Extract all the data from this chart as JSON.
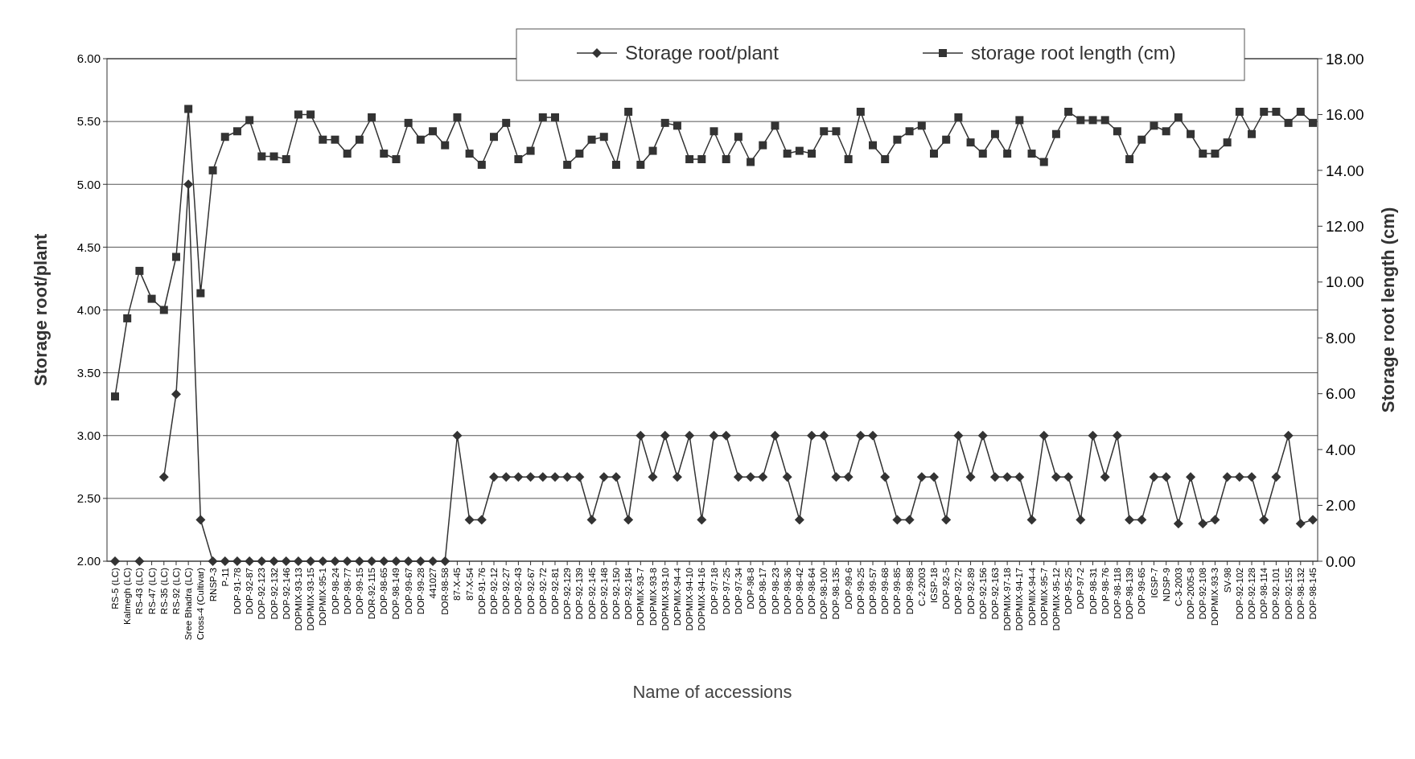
{
  "chart_data": {
    "type": "line",
    "xlabel": "Name of accessions",
    "ylabel": "Storage root/plant",
    "y2label": "Storage root length (cm)",
    "categories": [
      "RS-5 (LC)",
      "Kalmegh (LC)",
      "RS-43 (LC)",
      "RS-47 (LC)",
      "RS-35 (LC)",
      "RS-92 (LC)",
      "Sree Bhadra (LC)",
      "Cross-4 (Cultivar)",
      "RNSP-3",
      "P-11",
      "DOP-91-78",
      "DOP-92-87",
      "DOP-92-123",
      "DOP-92-132",
      "DOP-92-146",
      "DOPMIX-93-13",
      "DOPMIX-93-15",
      "DOPMIX-95-1",
      "DOP-98-24",
      "DOP-98-77",
      "DOP-99-15",
      "DOR-92-115",
      "DOP-98-65",
      "DOP-98-149",
      "DOP-99-67",
      "DOP-99-28",
      "441027",
      "DOR-98-58",
      "87-X-45",
      "87-X-54",
      "DOP-91-76",
      "DOP-92-12",
      "DOP-92-27",
      "DOP-92-43",
      "DOP-92-67",
      "DOP-92-72",
      "DOP-92-81",
      "DOP-92-129",
      "DOP-92-139",
      "DOP-92-145",
      "DOP-92-148",
      "DOP-92-150",
      "DOP-92-184",
      "DOPMIX-93-7",
      "DOPMIX-93-8",
      "DOPMIX-93-10",
      "DOPMIX-94-4",
      "DOPMIX-94-10",
      "DOPMIX-94-16",
      "DOP-97-18",
      "DOP-97-25",
      "DOP-97-34",
      "DOP-98-8",
      "DOP-98-17",
      "DOP-98-23",
      "DOP-98-36",
      "DOP-98-42",
      "DOP-98-64",
      "DOP-98-100",
      "DOP-98-135",
      "DOP-99-6",
      "DOP-99-25",
      "DOP-99-57",
      "DOP-99-68",
      "DOP-99-85",
      "DOP-99-88",
      "C-2-2003",
      "IGSP-18",
      "DOP-92-5",
      "DOP-92-72",
      "DOP-92-89",
      "DOP-92-156",
      "DOP-92-163",
      "DOPMIX-97-18",
      "DOPMIX-94-17",
      "DOPMIX-94-4",
      "DOPMIX-95-7",
      "DOPMIX-95-12",
      "DOP-95-25",
      "DOP-97-2",
      "DOP-98-31",
      "DOP-98-76",
      "DOP-98-118",
      "DOP-98-139",
      "DOP-99-65",
      "IGSP-7",
      "NDSP-9",
      "C-3-2003",
      "DOP-2005-8",
      "DOP-92-108",
      "DOPMIX-93-3",
      "SV-98",
      "DOP-92-102",
      "DOP-92-128",
      "DOP-98-114",
      "DOP-92-101",
      "DOP-92-155",
      "DOP-98-132",
      "DOP-98-145"
    ],
    "series": [
      {
        "name": "Storage root/plant",
        "color": "#333333",
        "marker": "diamond",
        "values": [
          2.0,
          null,
          2.0,
          null,
          2.67,
          3.33,
          5.0,
          2.33,
          2.0,
          2.0,
          2.0,
          2.0,
          2.0,
          2.0,
          2.0,
          2.0,
          2.0,
          2.0,
          2.0,
          2.0,
          2.0,
          2.0,
          2.0,
          2.0,
          2.0,
          2.0,
          2.0,
          2.0,
          3.0,
          2.33,
          2.33,
          2.67,
          2.67,
          2.67,
          2.67,
          2.67,
          2.67,
          2.67,
          2.67,
          2.33,
          2.67,
          2.67,
          2.33,
          3.0,
          2.67,
          3.0,
          2.67,
          3.0,
          2.33,
          3.0,
          3.0,
          2.67,
          2.67,
          2.67,
          3.0,
          2.67,
          2.33,
          3.0,
          3.0,
          2.67,
          2.67,
          3.0,
          3.0,
          2.67,
          2.33,
          2.33,
          2.67,
          2.67,
          2.33,
          3.0,
          2.67,
          3.0,
          2.67,
          2.67,
          2.67,
          2.33,
          3.0,
          2.67,
          2.67,
          2.33,
          3.0,
          2.67,
          3.0,
          2.33,
          2.33,
          2.67,
          2.67,
          2.3,
          2.67,
          2.3,
          2.33,
          2.67,
          2.67,
          2.67,
          2.33,
          2.67,
          3.0,
          2.3,
          2.33
        ]
      },
      {
        "name": "storage root length (cm)",
        "color": "#333333",
        "marker": "square",
        "axis": "y2",
        "values": [
          5.9,
          8.7,
          10.4,
          9.4,
          9.0,
          10.9,
          16.2,
          9.6,
          14.0,
          15.2,
          15.4,
          15.8,
          14.5,
          14.5,
          14.4,
          16.0,
          16.0,
          15.1,
          15.1,
          14.6,
          15.1,
          15.9,
          14.6,
          14.4,
          15.7,
          15.1,
          15.4,
          14.9,
          15.9,
          14.6,
          14.2,
          15.2,
          15.7,
          14.4,
          14.7,
          15.9,
          15.9,
          14.2,
          14.6,
          15.1,
          15.2,
          14.2,
          16.1,
          14.2,
          14.7,
          15.7,
          15.6,
          14.4,
          14.4,
          15.4,
          14.4,
          15.2,
          14.3,
          14.9,
          15.6,
          14.6,
          14.7,
          14.6,
          15.4,
          15.4,
          14.4,
          16.1,
          14.9,
          14.4,
          15.1,
          15.4,
          15.6,
          14.6,
          15.1,
          15.9,
          15.0,
          14.6,
          15.3,
          14.6,
          15.8,
          14.6,
          14.3,
          15.3,
          16.1,
          15.8,
          15.8,
          15.8,
          15.4,
          14.4,
          15.1,
          15.6,
          15.4,
          15.9,
          15.3,
          14.6,
          14.6,
          15.0,
          16.1,
          15.3,
          16.1,
          16.1,
          15.7,
          16.1,
          15.7
        ]
      }
    ],
    "ylim": [
      2,
      6
    ],
    "yticks": [
      {
        "value": 2,
        "label": "2.00"
      },
      {
        "value": 2.5,
        "label": "2.50"
      },
      {
        "value": 3,
        "label": "3.00"
      },
      {
        "value": 3.5,
        "label": "3.50"
      },
      {
        "value": 4,
        "label": "4.00"
      },
      {
        "value": 4.5,
        "label": "4.50"
      },
      {
        "value": 5,
        "label": "5.00"
      },
      {
        "value": 5.5,
        "label": "5.50"
      },
      {
        "value": 6,
        "label": "6.00"
      }
    ],
    "y2lim": [
      0,
      18
    ],
    "y2ticks": [
      {
        "value": 0,
        "label": "0.00"
      },
      {
        "value": 2,
        "label": "2.00"
      },
      {
        "value": 4,
        "label": "4.00"
      },
      {
        "value": 6,
        "label": "6.00"
      },
      {
        "value": 8,
        "label": "8.00"
      },
      {
        "value": 10,
        "label": "10.00"
      },
      {
        "value": 12,
        "label": "12.00"
      },
      {
        "value": 14,
        "label": "14.00"
      },
      {
        "value": 16,
        "label": "16.00"
      },
      {
        "value": 18,
        "label": "18.00"
      }
    ],
    "grid": "y",
    "legend": "top",
    "line_style": "solid"
  }
}
